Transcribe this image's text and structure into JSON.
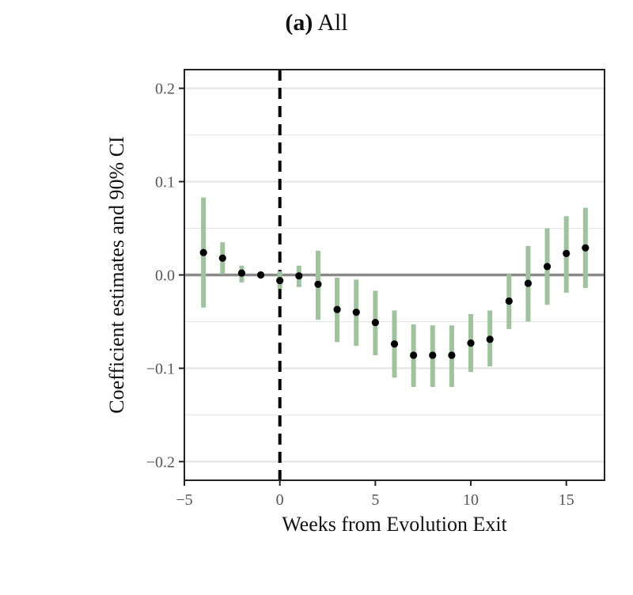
{
  "chart_data": {
    "type": "scatter",
    "title_prefix": "(a)",
    "title": "All",
    "xlabel": "Weeks from Evolution Exit",
    "ylabel": "Coefficient estimates and 90% CI",
    "xlim": [
      -5,
      17
    ],
    "ylim": [
      -0.22,
      0.22
    ],
    "xticks": [
      -5,
      0,
      5,
      10,
      15
    ],
    "xtick_labels": [
      "−5",
      "0",
      "5",
      "10",
      "15"
    ],
    "yticks": [
      0.2,
      0.1,
      0.0,
      -0.1,
      -0.2
    ],
    "ytick_labels": [
      "0.2",
      "0.1",
      "0.0",
      "−0.1",
      "−0.2"
    ],
    "grid": true,
    "reference_hline": 0,
    "reference_vline": 0,
    "colors": {
      "ci": "#9dc49c",
      "point": "#000000",
      "hline": "#8a8a8a",
      "grid": "#e6e6e6"
    },
    "points": [
      {
        "x": -4,
        "y": 0.024,
        "lo": -0.035,
        "hi": 0.083
      },
      {
        "x": -3,
        "y": 0.018,
        "lo": 0.001,
        "hi": 0.035
      },
      {
        "x": -2,
        "y": 0.002,
        "lo": -0.008,
        "hi": 0.01
      },
      {
        "x": -1,
        "y": 0.0,
        "lo": null,
        "hi": null
      },
      {
        "x": 0,
        "y": -0.006,
        "lo": -0.015,
        "hi": 0.004
      },
      {
        "x": 1,
        "y": -0.001,
        "lo": -0.013,
        "hi": 0.01
      },
      {
        "x": 2,
        "y": -0.01,
        "lo": -0.048,
        "hi": 0.026
      },
      {
        "x": 3,
        "y": -0.037,
        "lo": -0.072,
        "hi": -0.003
      },
      {
        "x": 4,
        "y": -0.04,
        "lo": -0.076,
        "hi": -0.005
      },
      {
        "x": 5,
        "y": -0.051,
        "lo": -0.086,
        "hi": -0.017
      },
      {
        "x": 6,
        "y": -0.074,
        "lo": -0.11,
        "hi": -0.038
      },
      {
        "x": 7,
        "y": -0.086,
        "lo": -0.12,
        "hi": -0.053
      },
      {
        "x": 8,
        "y": -0.086,
        "lo": -0.12,
        "hi": -0.054
      },
      {
        "x": 9,
        "y": -0.086,
        "lo": -0.12,
        "hi": -0.054
      },
      {
        "x": 10,
        "y": -0.073,
        "lo": -0.104,
        "hi": -0.042
      },
      {
        "x": 11,
        "y": -0.069,
        "lo": -0.098,
        "hi": -0.038
      },
      {
        "x": 12,
        "y": -0.028,
        "lo": -0.058,
        "hi": 0.001
      },
      {
        "x": 13,
        "y": -0.009,
        "lo": -0.05,
        "hi": 0.031
      },
      {
        "x": 14,
        "y": 0.009,
        "lo": -0.032,
        "hi": 0.05
      },
      {
        "x": 15,
        "y": 0.023,
        "lo": -0.019,
        "hi": 0.063
      },
      {
        "x": 16,
        "y": 0.029,
        "lo": -0.014,
        "hi": 0.072
      }
    ]
  }
}
